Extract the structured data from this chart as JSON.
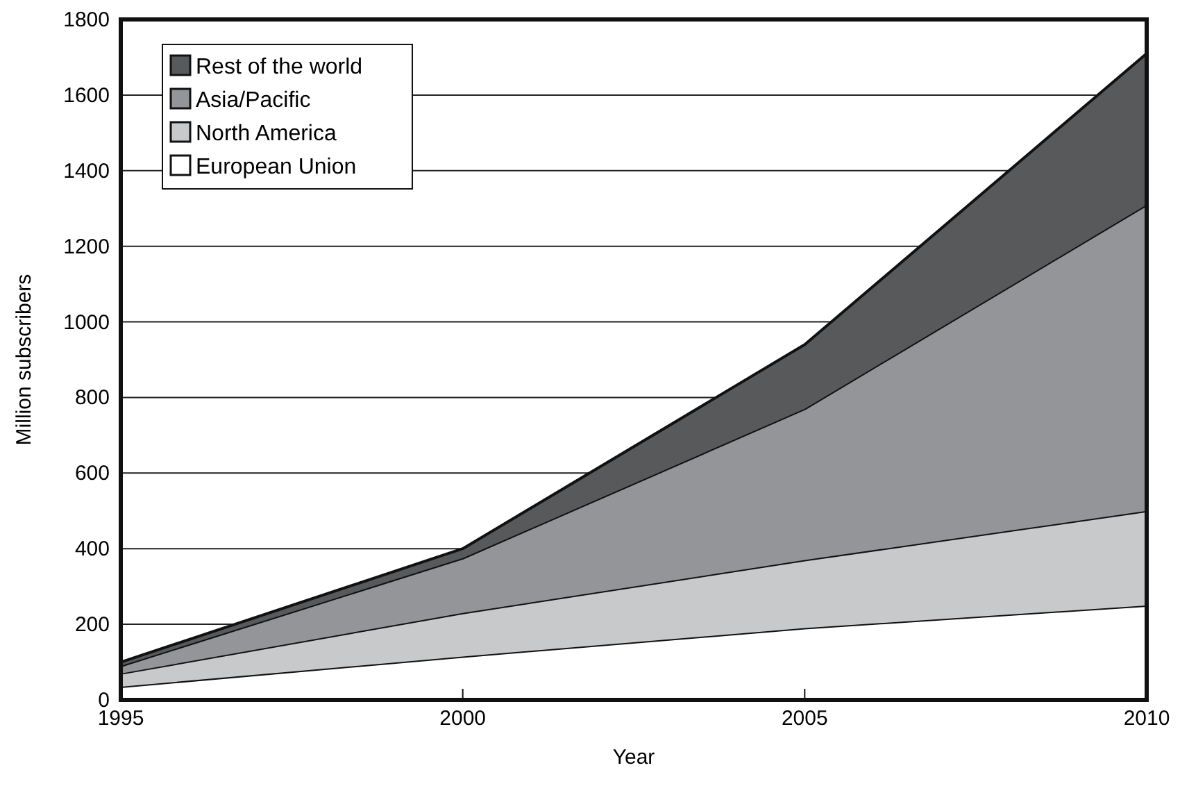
{
  "chart_data": {
    "type": "area",
    "stacked": true,
    "xlabel": "Year",
    "ylabel": "Million subscribers",
    "x": [
      1995,
      2000,
      2005,
      2010
    ],
    "xlim": [
      1995,
      2010
    ],
    "xticks": [
      1995,
      2000,
      2005,
      2010
    ],
    "ylim": [
      0,
      1800
    ],
    "yticks": [
      0,
      200,
      400,
      600,
      800,
      1000,
      1200,
      1400,
      1600,
      1800
    ],
    "grid": "y",
    "legend": "top left",
    "series": [
      {
        "name": "European Union",
        "color": "#ffffff",
        "values": [
          35,
          115,
          190,
          250
        ]
      },
      {
        "name": "North America",
        "color": "#c8c9cb",
        "values": [
          35,
          115,
          180,
          250
        ]
      },
      {
        "name": "Asia/Pacific",
        "color": "#939598",
        "values": [
          20,
          145,
          400,
          810
        ]
      },
      {
        "name": "Rest of the world",
        "color": "#58595b",
        "values": [
          10,
          25,
          170,
          400
        ]
      }
    ]
  }
}
